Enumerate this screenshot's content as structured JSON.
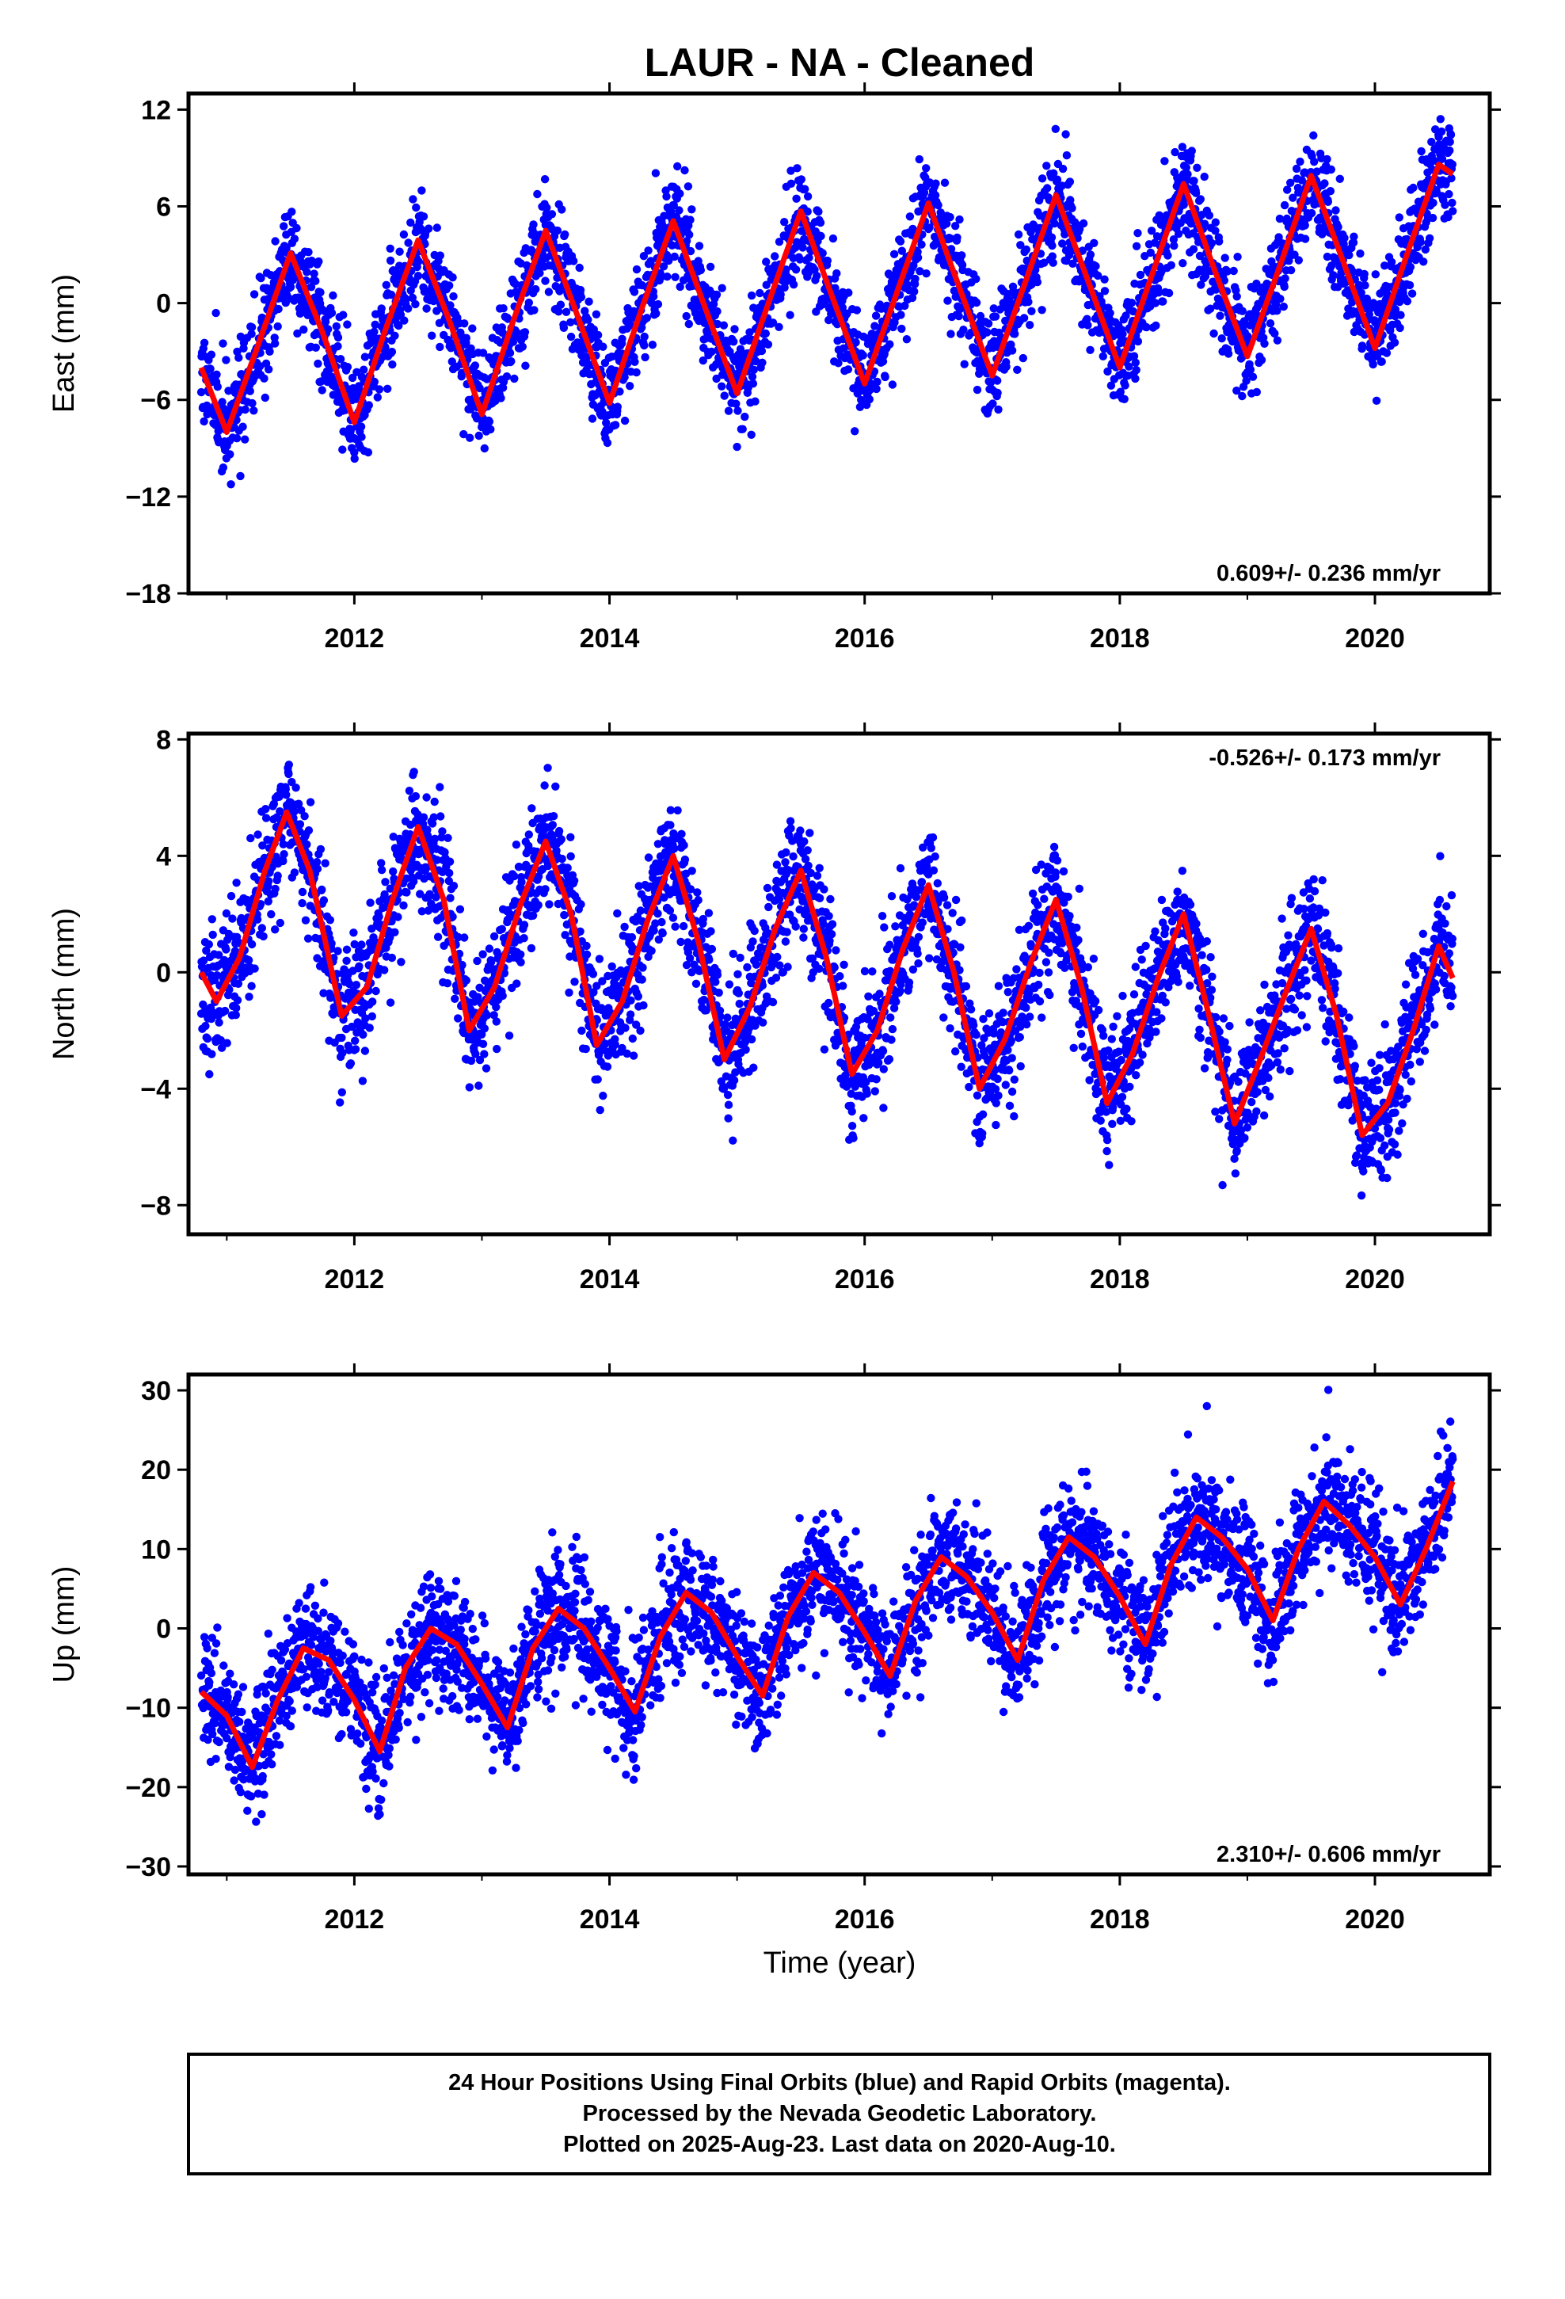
{
  "title": "LAUR  - NA - Cleaned",
  "xlabel": "Time (year)",
  "footer": {
    "line1": "24 Hour Positions Using Final Orbits (blue) and Rapid Orbits (magenta).",
    "line2": "Processed by the Nevada Geodetic Laboratory.",
    "line3": "Plotted on 2025-Aug-23. Last data on 2020-Aug-10."
  },
  "colors": {
    "points": "#0000ff",
    "fit": "#ff0000",
    "frame": "#000000"
  },
  "chart_data": [
    {
      "type": "scatter",
      "ylabel": "East (mm)",
      "xlim": [
        2010.7,
        2020.9
      ],
      "ylim": [
        -18,
        13
      ],
      "xticks": [
        2012,
        2014,
        2016,
        2018,
        2020
      ],
      "yticks": [
        -18,
        -12,
        -6,
        0,
        6,
        12
      ],
      "rate_label": "0.609+/- 0.236 mm/yr",
      "rate_position": "bottom-right",
      "series": [
        {
          "role": "data",
          "x_range": [
            2010.8,
            2020.61
          ],
          "color": "#0000ff"
        },
        {
          "role": "fit",
          "color": "#ff0000",
          "x": [
            2010.8,
            2011.0,
            2011.25,
            2011.5,
            2011.75,
            2012.0,
            2012.25,
            2012.5,
            2012.75,
            2013.0,
            2013.25,
            2013.5,
            2013.75,
            2014.0,
            2014.25,
            2014.5,
            2014.75,
            2015.0,
            2015.25,
            2015.5,
            2015.75,
            2016.0,
            2016.25,
            2016.5,
            2016.75,
            2017.0,
            2017.25,
            2017.5,
            2017.75,
            2018.0,
            2018.25,
            2018.5,
            2018.75,
            2019.0,
            2019.25,
            2019.5,
            2019.75,
            2020.0,
            2020.25,
            2020.5,
            2020.61
          ],
          "y": [
            -4.0,
            -8.0,
            -2.5,
            3.1,
            -1.8,
            -7.4,
            -1.5,
            3.9,
            -1.2,
            -6.9,
            -1.0,
            4.5,
            -0.8,
            -6.2,
            -0.4,
            5.1,
            -0.3,
            -5.6,
            0.1,
            5.7,
            0.3,
            -5.0,
            0.6,
            6.2,
            0.8,
            -4.5,
            1.1,
            6.7,
            1.4,
            -4.0,
            1.7,
            7.4,
            1.9,
            -3.3,
            2.2,
            7.9,
            2.6,
            -2.8,
            3.0,
            8.6,
            8.0
          ]
        }
      ]
    },
    {
      "type": "scatter",
      "ylabel": "North (mm)",
      "xlim": [
        2010.7,
        2020.9
      ],
      "ylim": [
        -9,
        8.2
      ],
      "xticks": [
        2012,
        2014,
        2016,
        2018,
        2020
      ],
      "yticks": [
        -8,
        -4,
        0,
        4,
        8
      ],
      "rate_label": "-0.526+/- 0.173 mm/yr",
      "rate_position": "top-right",
      "series": [
        {
          "role": "data",
          "x_range": [
            2010.8,
            2020.61
          ],
          "color": "#0000ff"
        },
        {
          "role": "fit",
          "color": "#ff0000",
          "x": [
            2010.8,
            2010.92,
            2011.1,
            2011.3,
            2011.47,
            2011.65,
            2011.9,
            2012.1,
            2012.3,
            2012.5,
            2012.7,
            2012.9,
            2013.1,
            2013.3,
            2013.5,
            2013.7,
            2013.9,
            2014.1,
            2014.3,
            2014.5,
            2014.7,
            2014.9,
            2015.1,
            2015.3,
            2015.5,
            2015.7,
            2015.9,
            2016.1,
            2016.3,
            2016.5,
            2016.7,
            2016.9,
            2017.1,
            2017.3,
            2017.5,
            2017.7,
            2017.9,
            2018.1,
            2018.3,
            2018.5,
            2018.7,
            2018.9,
            2019.1,
            2019.3,
            2019.5,
            2019.7,
            2019.9,
            2020.1,
            2020.3,
            2020.5,
            2020.61
          ],
          "y": [
            0.0,
            -1.0,
            0.5,
            3.5,
            5.5,
            3.5,
            -1.5,
            -0.5,
            2.5,
            5.0,
            2.5,
            -2.0,
            -0.5,
            2.3,
            4.5,
            2.0,
            -2.5,
            -1.0,
            1.8,
            4.0,
            1.0,
            -3.0,
            -1.2,
            1.5,
            3.5,
            0.5,
            -3.5,
            -2.0,
            0.8,
            3.0,
            0.0,
            -4.0,
            -2.3,
            0.3,
            2.5,
            -0.5,
            -4.5,
            -2.8,
            -0.2,
            2.0,
            -1.5,
            -5.2,
            -3.0,
            -0.7,
            1.5,
            -1.5,
            -5.6,
            -4.5,
            -2.0,
            0.9,
            -0.2
          ]
        }
      ]
    },
    {
      "type": "scatter",
      "ylabel": "Up (mm)",
      "xlim": [
        2010.7,
        2020.9
      ],
      "ylim": [
        -31,
        32
      ],
      "xticks": [
        2012,
        2014,
        2016,
        2018,
        2020
      ],
      "yticks": [
        -30,
        -20,
        -10,
        0,
        10,
        20,
        30
      ],
      "rate_label": "2.310+/- 0.606 mm/yr",
      "rate_position": "bottom-right",
      "series": [
        {
          "role": "data",
          "x_range": [
            2010.8,
            2020.61
          ],
          "color": "#0000ff"
        },
        {
          "role": "fit",
          "color": "#ff0000",
          "x": [
            2010.8,
            2011.0,
            2011.2,
            2011.4,
            2011.6,
            2011.8,
            2012.0,
            2012.2,
            2012.4,
            2012.6,
            2012.8,
            2013.0,
            2013.2,
            2013.4,
            2013.6,
            2013.8,
            2014.0,
            2014.2,
            2014.4,
            2014.6,
            2014.8,
            2015.0,
            2015.2,
            2015.4,
            2015.6,
            2015.8,
            2016.0,
            2016.2,
            2016.4,
            2016.6,
            2016.8,
            2017.0,
            2017.2,
            2017.4,
            2017.6,
            2017.8,
            2018.0,
            2018.2,
            2018.4,
            2018.6,
            2018.8,
            2019.0,
            2019.2,
            2019.4,
            2019.6,
            2019.8,
            2020.0,
            2020.2,
            2020.4,
            2020.61
          ],
          "y": [
            -8,
            -11,
            -17.5,
            -9,
            -2.5,
            -4,
            -9,
            -15.5,
            -5,
            0,
            -2,
            -7,
            -12.5,
            -2.5,
            2.5,
            0,
            -5,
            -10.5,
            -1,
            4.5,
            2,
            -3.5,
            -8.5,
            1.5,
            7,
            4.5,
            -0.5,
            -6,
            3.5,
            9,
            6.5,
            2,
            -4,
            6,
            11.5,
            9,
            4,
            -2,
            8,
            14,
            11.5,
            7.5,
            1,
            10,
            16,
            13,
            9,
            3,
            10,
            18.5
          ]
        }
      ]
    }
  ]
}
